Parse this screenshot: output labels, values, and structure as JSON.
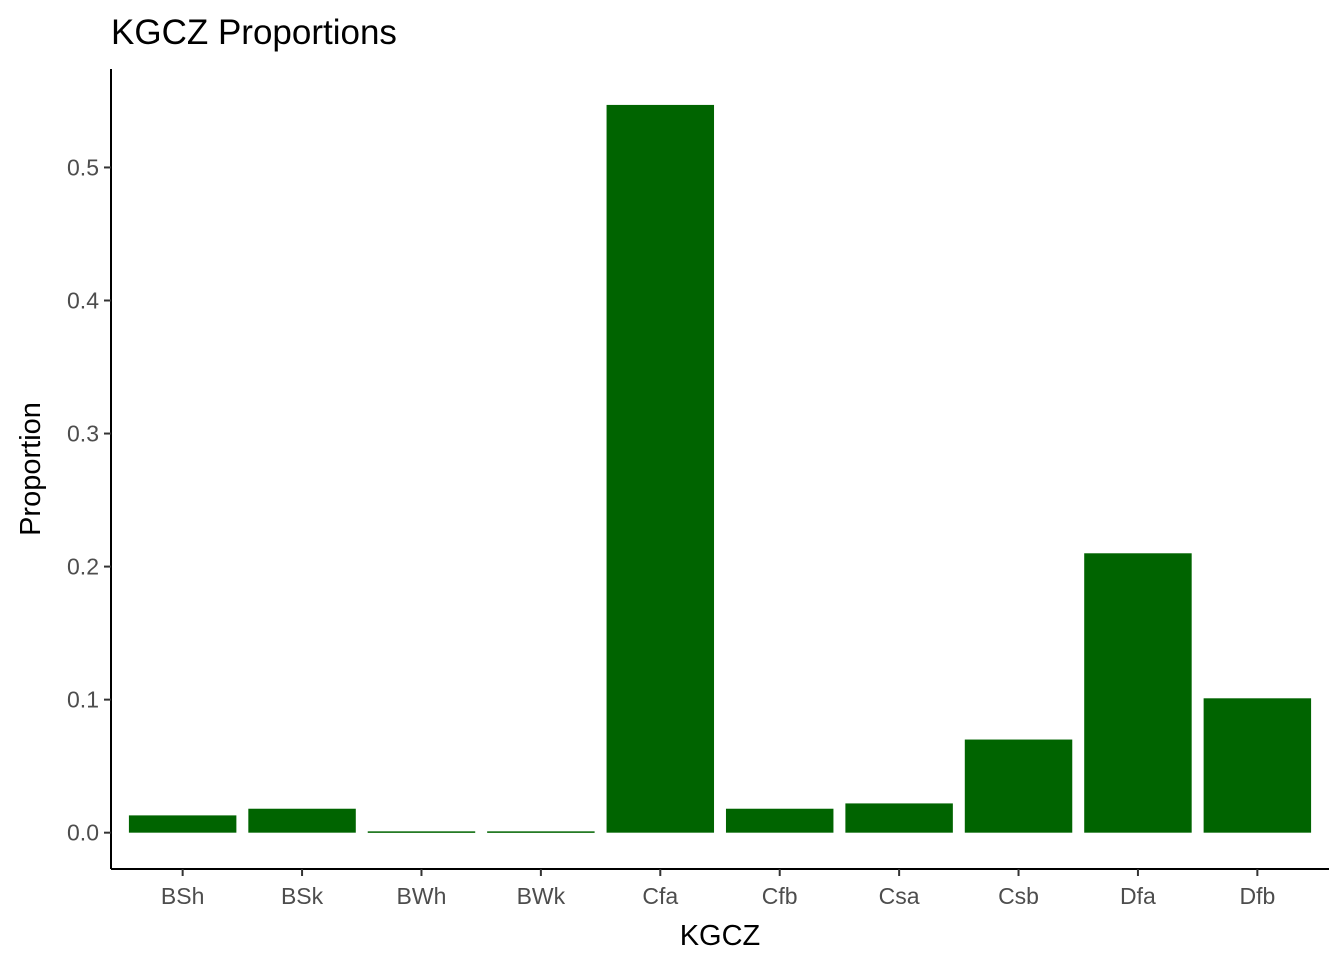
{
  "chart_data": {
    "type": "bar",
    "title": "KGCZ Proportions",
    "xlabel": "KGCZ",
    "ylabel": "Proportion",
    "categories": [
      "BSh",
      "BSk",
      "BWh",
      "BWk",
      "Cfa",
      "Cfb",
      "Csa",
      "Csb",
      "Dfa",
      "Dfb"
    ],
    "values": [
      0.013,
      0.018,
      0.001,
      0.001,
      0.547,
      0.018,
      0.022,
      0.07,
      0.21,
      0.101
    ],
    "yticks": [
      {
        "value": 0.0,
        "label": "0.0"
      },
      {
        "value": 0.1,
        "label": "0.1"
      },
      {
        "value": 0.2,
        "label": "0.2"
      },
      {
        "value": 0.3,
        "label": "0.3"
      },
      {
        "value": 0.4,
        "label": "0.4"
      },
      {
        "value": 0.5,
        "label": "0.5"
      }
    ],
    "ylim": [
      -0.0273,
      0.574
    ],
    "bar_color": "#006400",
    "grid": false,
    "legend": "none"
  }
}
